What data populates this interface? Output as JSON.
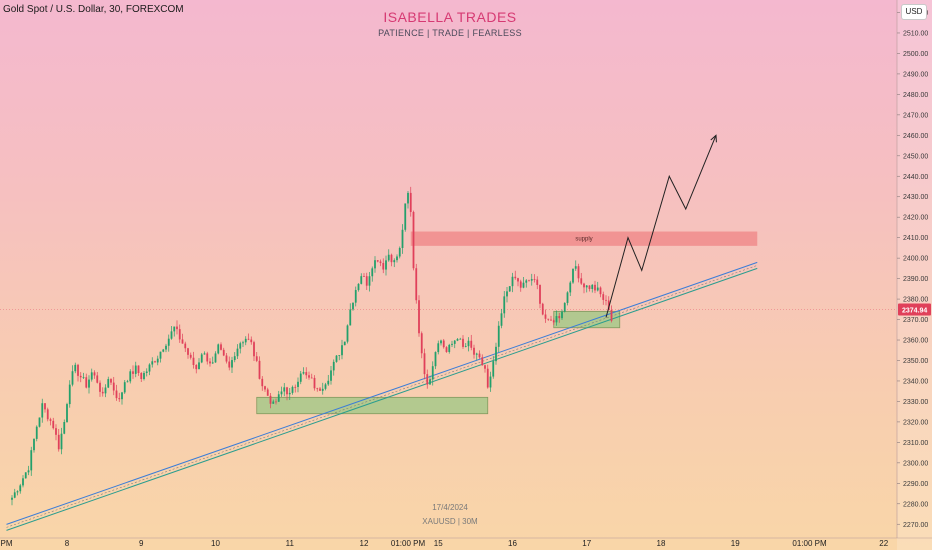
{
  "header": {
    "symbol_title": "Gold Spot / U.S. Dollar, 30, FOREXCOM",
    "brand": "ISABELLA TRADES",
    "tagline": "PATIENCE  |  TRADE  |  FEARLESS",
    "currency": "USD"
  },
  "watermark": {
    "date": "17/4/2024",
    "symbol": "XAUUSD | 30M"
  },
  "colors": {
    "up": "#22a06b",
    "down": "#e0405a",
    "trendline": "#2a9d8f",
    "trendline_inner": "#3b7dd8",
    "zone_fill": "#a7c98a",
    "supply_fill": "#f08c8c",
    "price_tag": "#e0405a",
    "projection": "#222222"
  },
  "chart_data": {
    "type": "candlestick",
    "symbol": "XAUUSD",
    "timeframe": "30",
    "last_price": "2374.94",
    "ylim": [
      2265,
      2525
    ],
    "y_ticks": [
      "2520.00",
      "2510.00",
      "2500.00",
      "2490.00",
      "2480.00",
      "2470.00",
      "2460.00",
      "2450.00",
      "2440.00",
      "2430.00",
      "2420.00",
      "2410.00",
      "2400.00",
      "2390.00",
      "2380.00",
      "2370.00",
      "2360.00",
      "2350.00",
      "2340.00",
      "2330.00",
      "2320.00",
      "2310.00",
      "2300.00",
      "2290.00",
      "2280.00",
      "2270.00"
    ],
    "x_ticks": [
      "00 PM",
      "8",
      "9",
      "10",
      "11",
      "12",
      "01:00 PM",
      "15",
      "16",
      "17",
      "18",
      "19",
      "01:00 PM",
      "22"
    ],
    "x_tick_index": [
      -4,
      20,
      47,
      74,
      101,
      128,
      144,
      155,
      182,
      209,
      236,
      263,
      290,
      317
    ],
    "price_path": [
      [
        0,
        2283
      ],
      [
        3,
        2290
      ],
      [
        6,
        2298
      ],
      [
        9,
        2318
      ],
      [
        11,
        2328
      ],
      [
        13,
        2323
      ],
      [
        15,
        2318
      ],
      [
        17,
        2308
      ],
      [
        19,
        2320
      ],
      [
        21,
        2340
      ],
      [
        23,
        2346
      ],
      [
        25,
        2342
      ],
      [
        27,
        2338
      ],
      [
        29,
        2344
      ],
      [
        31,
        2340
      ],
      [
        33,
        2332
      ],
      [
        35,
        2342
      ],
      [
        37,
        2336
      ],
      [
        39,
        2330
      ],
      [
        41,
        2340
      ],
      [
        43,
        2343
      ],
      [
        45,
        2346
      ],
      [
        47,
        2342
      ],
      [
        49,
        2345
      ],
      [
        51,
        2349
      ],
      [
        53,
        2352
      ],
      [
        55,
        2357
      ],
      [
        57,
        2361
      ],
      [
        59,
        2366
      ],
      [
        61,
        2361
      ],
      [
        63,
        2356
      ],
      [
        65,
        2350
      ],
      [
        67,
        2346
      ],
      [
        69,
        2354
      ],
      [
        71,
        2351
      ],
      [
        73,
        2348
      ],
      [
        75,
        2356
      ],
      [
        77,
        2351
      ],
      [
        79,
        2346
      ],
      [
        81,
        2354
      ],
      [
        83,
        2359
      ],
      [
        85,
        2361
      ],
      [
        87,
        2358
      ],
      [
        89,
        2348
      ],
      [
        91,
        2338
      ],
      [
        93,
        2333
      ],
      [
        95,
        2328
      ],
      [
        97,
        2332
      ],
      [
        99,
        2337
      ],
      [
        101,
        2333
      ],
      [
        103,
        2338
      ],
      [
        105,
        2345
      ],
      [
        107,
        2342
      ],
      [
        109,
        2340
      ],
      [
        111,
        2335
      ],
      [
        113,
        2338
      ],
      [
        115,
        2342
      ],
      [
        117,
        2348
      ],
      [
        119,
        2354
      ],
      [
        121,
        2361
      ],
      [
        123,
        2375
      ],
      [
        125,
        2385
      ],
      [
        127,
        2392
      ],
      [
        129,
        2388
      ],
      [
        131,
        2397
      ],
      [
        133,
        2400
      ],
      [
        135,
        2396
      ],
      [
        137,
        2402
      ],
      [
        139,
        2398
      ],
      [
        141,
        2404
      ],
      [
        143,
        2425
      ],
      [
        144,
        2431
      ],
      [
        145,
        2422
      ],
      [
        146,
        2396
      ],
      [
        147,
        2380
      ],
      [
        148,
        2365
      ],
      [
        149,
        2352
      ],
      [
        150,
        2345
      ],
      [
        151,
        2340
      ],
      [
        152,
        2342
      ],
      [
        153,
        2348
      ],
      [
        154,
        2356
      ],
      [
        156,
        2360
      ],
      [
        158,
        2354
      ],
      [
        160,
        2358
      ],
      [
        162,
        2362
      ],
      [
        164,
        2356
      ],
      [
        166,
        2358
      ],
      [
        168,
        2353
      ],
      [
        170,
        2350
      ],
      [
        172,
        2346
      ],
      [
        173,
        2336
      ],
      [
        174,
        2341
      ],
      [
        175,
        2348
      ],
      [
        177,
        2365
      ],
      [
        179,
        2380
      ],
      [
        181,
        2388
      ],
      [
        183,
        2390
      ],
      [
        185,
        2386
      ],
      [
        187,
        2388
      ],
      [
        189,
        2390
      ],
      [
        191,
        2386
      ],
      [
        193,
        2373
      ],
      [
        195,
        2368
      ],
      [
        197,
        2370
      ],
      [
        199,
        2372
      ],
      [
        201,
        2378
      ],
      [
        203,
        2390
      ],
      [
        205,
        2396
      ],
      [
        207,
        2388
      ],
      [
        209,
        2386
      ],
      [
        211,
        2386
      ],
      [
        213,
        2384
      ],
      [
        215,
        2380
      ],
      [
        217,
        2376
      ],
      [
        218,
        2370
      ]
    ],
    "annotations": {
      "supply_label": "supply",
      "supply_zone": {
        "x0": 145,
        "x1": 271,
        "y_top": 2413,
        "y_bottom": 2406
      },
      "demand_zone_1": {
        "x0": 89,
        "x1": 173,
        "y_top": 2332,
        "y_bottom": 2324
      },
      "demand_zone_2": {
        "x0": 197,
        "x1": 221,
        "y_top": 2374,
        "y_bottom": 2366
      },
      "trendline": {
        "x0": -2,
        "y0": 2267,
        "x1": 271,
        "y1": 2395
      },
      "projection_path": [
        [
          216,
          2371
        ],
        [
          224,
          2410
        ],
        [
          229,
          2394
        ],
        [
          239,
          2440
        ],
        [
          245,
          2424
        ],
        [
          256,
          2460
        ]
      ]
    }
  }
}
